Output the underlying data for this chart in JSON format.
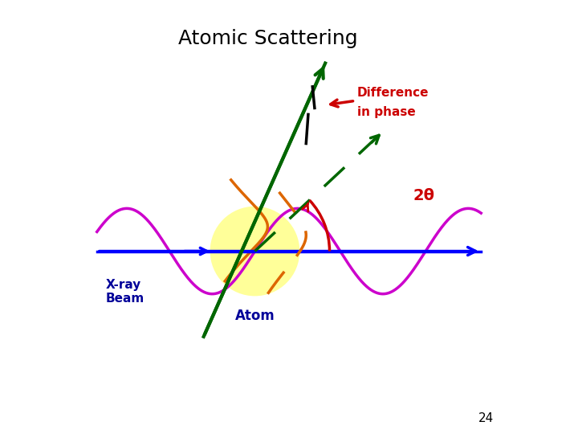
{
  "title": "Atomic Scattering",
  "title_fontsize": 18,
  "title_color": "black",
  "background_color": "white",
  "slide_number": "24",
  "beam_color": "blue",
  "wave_color": "#cc00cc",
  "orange_color": "#dd6600",
  "green_color": "#006600",
  "red_color": "#cc0000",
  "black_color": "black",
  "atom_color": "#ffff99",
  "atom_label_color": "#000099",
  "xbeam_label": "X-ray\nBeam",
  "atom_label": "Atom",
  "twotheta_label": "2θ",
  "diff_phase_label": "→Difference\n   in phase"
}
